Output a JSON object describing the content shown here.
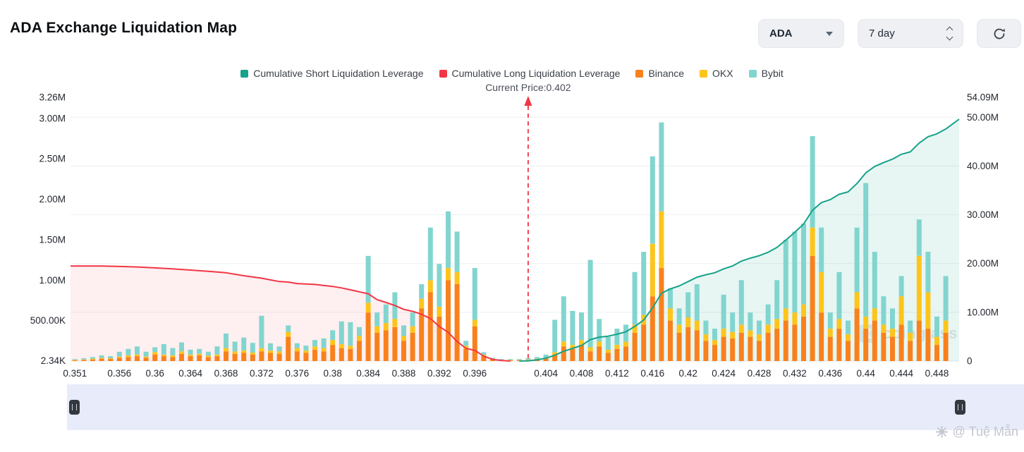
{
  "header": {
    "title": "ADA Exchange Liquidation Map",
    "coin_select": "ADA",
    "range_select": "7 day"
  },
  "legend": {
    "items": [
      {
        "label": "Cumulative Short Liquidation Leverage",
        "color": "#17a28a"
      },
      {
        "label": "Cumulative Long Liquidation Leverage",
        "color": "#f23645"
      },
      {
        "label": "Binance",
        "color": "#f8811d"
      },
      {
        "label": "OKX",
        "color": "#fdc51c"
      },
      {
        "label": "Bybit",
        "color": "#82d5cf"
      }
    ]
  },
  "current_price": {
    "label": "Current Price:0.402",
    "value": 0.402
  },
  "watermark": "coinglass",
  "credit": "@ Tuệ Mẫn",
  "chart_data": {
    "type": "bar",
    "subtype": "stacked-bars-with-cumulative-area-lines",
    "title": "ADA Exchange Liquidation Map",
    "grid": true,
    "legend_position": "top-center",
    "x_axis": {
      "min": 0.3505,
      "max": 0.4505,
      "ticks": [
        {
          "label": "0.351",
          "value": 0.351
        },
        {
          "label": "0.356",
          "value": 0.356
        },
        {
          "label": "0.36",
          "value": 0.36
        },
        {
          "label": "0.364",
          "value": 0.364
        },
        {
          "label": "0.368",
          "value": 0.368
        },
        {
          "label": "0.372",
          "value": 0.372
        },
        {
          "label": "0.376",
          "value": 0.376
        },
        {
          "label": "0.38",
          "value": 0.38
        },
        {
          "label": "0.384",
          "value": 0.384
        },
        {
          "label": "0.388",
          "value": 0.388
        },
        {
          "label": "0.392",
          "value": 0.392
        },
        {
          "label": "0.396",
          "value": 0.396
        },
        {
          "label": "0.404",
          "value": 0.404
        },
        {
          "label": "0.408",
          "value": 0.408
        },
        {
          "label": "0.412",
          "value": 0.412
        },
        {
          "label": "0.416",
          "value": 0.416
        },
        {
          "label": "0.42",
          "value": 0.42
        },
        {
          "label": "0.424",
          "value": 0.424
        },
        {
          "label": "0.428",
          "value": 0.428
        },
        {
          "label": "0.432",
          "value": 0.432
        },
        {
          "label": "0.436",
          "value": 0.436
        },
        {
          "label": "0.44",
          "value": 0.44
        },
        {
          "label": "0.444",
          "value": 0.444
        },
        {
          "label": "0.448",
          "value": 0.448
        }
      ]
    },
    "left_axis": {
      "max": 3.26,
      "unit": "M",
      "ticks": [
        {
          "label": "3.26M",
          "value": 3.26
        },
        {
          "label": "3.00M",
          "value": 3.0
        },
        {
          "label": "2.50M",
          "value": 2.5
        },
        {
          "label": "2.00M",
          "value": 2.0
        },
        {
          "label": "1.50M",
          "value": 1.5
        },
        {
          "label": "1.00M",
          "value": 1.0
        },
        {
          "label": "500.00K",
          "value": 0.5
        },
        {
          "label": "2.34K",
          "value": 0.00234
        }
      ]
    },
    "right_axis": {
      "max": 54.09,
      "unit": "M",
      "ticks": [
        {
          "label": "54.09M",
          "value": 54.09
        },
        {
          "label": "50.00M",
          "value": 50
        },
        {
          "label": "40.00M",
          "value": 40
        },
        {
          "label": "30.00M",
          "value": 30
        },
        {
          "label": "20.00M",
          "value": 20
        },
        {
          "label": "10.00M",
          "value": 10
        },
        {
          "label": "0",
          "value": 0
        }
      ]
    },
    "bars": {
      "stack": [
        "Binance",
        "OKX",
        "Bybit"
      ],
      "colors": [
        "#f8811d",
        "#fdc51c",
        "#82d5cf"
      ],
      "unit": "K",
      "rows": [
        [
          0.351,
          10,
          5,
          10
        ],
        [
          0.352,
          15,
          5,
          15
        ],
        [
          0.353,
          20,
          10,
          20
        ],
        [
          0.354,
          30,
          10,
          30
        ],
        [
          0.355,
          25,
          10,
          25
        ],
        [
          0.356,
          40,
          15,
          60
        ],
        [
          0.357,
          50,
          20,
          80
        ],
        [
          0.358,
          60,
          20,
          100
        ],
        [
          0.359,
          40,
          15,
          60
        ],
        [
          0.36,
          80,
          30,
          60
        ],
        [
          0.361,
          60,
          20,
          130
        ],
        [
          0.362,
          50,
          20,
          90
        ],
        [
          0.363,
          90,
          30,
          110
        ],
        [
          0.364,
          60,
          20,
          60
        ],
        [
          0.365,
          70,
          20,
          60
        ],
        [
          0.366,
          50,
          15,
          50
        ],
        [
          0.367,
          60,
          20,
          100
        ],
        [
          0.368,
          120,
          40,
          180
        ],
        [
          0.369,
          90,
          30,
          120
        ],
        [
          0.37,
          100,
          30,
          160
        ],
        [
          0.371,
          80,
          25,
          120
        ],
        [
          0.372,
          120,
          40,
          400
        ],
        [
          0.373,
          100,
          30,
          90
        ],
        [
          0.374,
          90,
          30,
          60
        ],
        [
          0.375,
          300,
          60,
          80
        ],
        [
          0.376,
          120,
          40,
          60
        ],
        [
          0.377,
          100,
          30,
          60
        ],
        [
          0.378,
          140,
          40,
          80
        ],
        [
          0.379,
          120,
          40,
          120
        ],
        [
          0.38,
          200,
          60,
          120
        ],
        [
          0.381,
          160,
          50,
          280
        ],
        [
          0.382,
          150,
          40,
          290
        ],
        [
          0.383,
          250,
          60,
          110
        ],
        [
          0.384,
          600,
          120,
          580
        ],
        [
          0.385,
          350,
          80,
          170
        ],
        [
          0.386,
          380,
          90,
          230
        ],
        [
          0.387,
          420,
          100,
          330
        ],
        [
          0.388,
          250,
          60,
          130
        ],
        [
          0.389,
          350,
          80,
          170
        ],
        [
          0.39,
          650,
          120,
          180
        ],
        [
          0.391,
          850,
          150,
          650
        ],
        [
          0.392,
          550,
          120,
          530
        ],
        [
          0.393,
          1000,
          150,
          700
        ],
        [
          0.394,
          950,
          150,
          500
        ],
        [
          0.395,
          150,
          40,
          60
        ],
        [
          0.396,
          430,
          80,
          640
        ],
        [
          0.397,
          60,
          20,
          30
        ],
        [
          0.398,
          20,
          10,
          10
        ],
        [
          0.399,
          10,
          5,
          10
        ],
        [
          0.4,
          10,
          5,
          10
        ],
        [
          0.401,
          10,
          5,
          10
        ],
        [
          0.402,
          15,
          5,
          15
        ],
        [
          0.403,
          20,
          10,
          20
        ],
        [
          0.404,
          30,
          10,
          40
        ],
        [
          0.405,
          80,
          30,
          400
        ],
        [
          0.406,
          180,
          60,
          560
        ],
        [
          0.407,
          150,
          50,
          420
        ],
        [
          0.408,
          200,
          60,
          340
        ],
        [
          0.409,
          120,
          50,
          1080
        ],
        [
          0.41,
          180,
          60,
          280
        ],
        [
          0.411,
          100,
          40,
          160
        ],
        [
          0.412,
          150,
          50,
          200
        ],
        [
          0.413,
          180,
          60,
          210
        ],
        [
          0.414,
          350,
          100,
          650
        ],
        [
          0.415,
          450,
          120,
          780
        ],
        [
          0.416,
          800,
          650,
          1080
        ],
        [
          0.417,
          1150,
          700,
          1100
        ],
        [
          0.418,
          500,
          150,
          250
        ],
        [
          0.419,
          350,
          100,
          200
        ],
        [
          0.42,
          420,
          120,
          310
        ],
        [
          0.421,
          380,
          120,
          450
        ],
        [
          0.422,
          250,
          80,
          170
        ],
        [
          0.423,
          200,
          60,
          140
        ],
        [
          0.424,
          300,
          100,
          420
        ],
        [
          0.425,
          280,
          80,
          240
        ],
        [
          0.426,
          350,
          100,
          550
        ],
        [
          0.427,
          300,
          80,
          220
        ],
        [
          0.428,
          250,
          80,
          170
        ],
        [
          0.429,
          350,
          100,
          250
        ],
        [
          0.43,
          400,
          120,
          480
        ],
        [
          0.431,
          500,
          150,
          850
        ],
        [
          0.432,
          450,
          150,
          1000
        ],
        [
          0.433,
          550,
          150,
          1000
        ],
        [
          0.434,
          1300,
          350,
          1130
        ],
        [
          0.435,
          600,
          500,
          550
        ],
        [
          0.436,
          300,
          100,
          200
        ],
        [
          0.437,
          400,
          120,
          580
        ],
        [
          0.438,
          250,
          80,
          170
        ],
        [
          0.439,
          650,
          200,
          800
        ],
        [
          0.44,
          400,
          150,
          1650
        ],
        [
          0.441,
          500,
          150,
          700
        ],
        [
          0.442,
          350,
          100,
          350
        ],
        [
          0.443,
          300,
          100,
          250
        ],
        [
          0.444,
          450,
          350,
          250
        ],
        [
          0.445,
          250,
          100,
          150
        ],
        [
          0.446,
          500,
          800,
          450
        ],
        [
          0.447,
          400,
          450,
          500
        ],
        [
          0.448,
          200,
          100,
          250
        ],
        [
          0.449,
          350,
          150,
          550
        ]
      ]
    },
    "lines": [
      {
        "name": "Cumulative Long Liquidation Leverage",
        "color": "#f23645",
        "fill": "rgba(242,54,69,0.08)",
        "unit": "M",
        "points": [
          [
            0.3505,
            19.5
          ],
          [
            0.352,
            19.5
          ],
          [
            0.354,
            19.5
          ],
          [
            0.356,
            19.4
          ],
          [
            0.358,
            19.3
          ],
          [
            0.36,
            19.1
          ],
          [
            0.362,
            18.9
          ],
          [
            0.364,
            18.65
          ],
          [
            0.366,
            18.4
          ],
          [
            0.368,
            18.1
          ],
          [
            0.37,
            17.5
          ],
          [
            0.372,
            17.0
          ],
          [
            0.374,
            16.3
          ],
          [
            0.375,
            16.2
          ],
          [
            0.376,
            15.9
          ],
          [
            0.378,
            15.7
          ],
          [
            0.38,
            15.3
          ],
          [
            0.381,
            15.0
          ],
          [
            0.382,
            14.6
          ],
          [
            0.383,
            14.2
          ],
          [
            0.384,
            13.8
          ],
          [
            0.385,
            12.6
          ],
          [
            0.386,
            12.0
          ],
          [
            0.387,
            11.4
          ],
          [
            0.388,
            10.6
          ],
          [
            0.389,
            10.2
          ],
          [
            0.39,
            9.6
          ],
          [
            0.391,
            8.7
          ],
          [
            0.392,
            7.1
          ],
          [
            0.393,
            5.9
          ],
          [
            0.394,
            4.0
          ],
          [
            0.395,
            2.6
          ],
          [
            0.396,
            2.2
          ],
          [
            0.397,
            1.0
          ],
          [
            0.398,
            0.35
          ],
          [
            0.399,
            0.1
          ],
          [
            0.4,
            0.0
          ]
        ]
      },
      {
        "name": "Cumulative Short Liquidation Leverage",
        "color": "#17a28a",
        "fill": "rgba(23,162,138,0.10)",
        "unit": "M",
        "points": [
          [
            0.401,
            0.0
          ],
          [
            0.402,
            0.05
          ],
          [
            0.403,
            0.25
          ],
          [
            0.404,
            0.6
          ],
          [
            0.405,
            1.2
          ],
          [
            0.406,
            2.0
          ],
          [
            0.407,
            2.6
          ],
          [
            0.408,
            3.2
          ],
          [
            0.409,
            4.4
          ],
          [
            0.41,
            4.9
          ],
          [
            0.411,
            5.1
          ],
          [
            0.412,
            5.5
          ],
          [
            0.413,
            6.0
          ],
          [
            0.414,
            7.1
          ],
          [
            0.415,
            8.4
          ],
          [
            0.416,
            10.9
          ],
          [
            0.417,
            13.9
          ],
          [
            0.418,
            14.8
          ],
          [
            0.419,
            15.4
          ],
          [
            0.42,
            16.3
          ],
          [
            0.421,
            17.2
          ],
          [
            0.422,
            17.7
          ],
          [
            0.423,
            18.1
          ],
          [
            0.424,
            18.9
          ],
          [
            0.425,
            19.5
          ],
          [
            0.426,
            20.5
          ],
          [
            0.427,
            21.1
          ],
          [
            0.428,
            21.6
          ],
          [
            0.429,
            22.3
          ],
          [
            0.43,
            23.3
          ],
          [
            0.431,
            24.8
          ],
          [
            0.432,
            26.4
          ],
          [
            0.433,
            28.1
          ],
          [
            0.434,
            30.9
          ],
          [
            0.435,
            32.5
          ],
          [
            0.436,
            33.1
          ],
          [
            0.437,
            34.2
          ],
          [
            0.438,
            34.7
          ],
          [
            0.439,
            36.4
          ],
          [
            0.44,
            38.6
          ],
          [
            0.441,
            39.9
          ],
          [
            0.442,
            40.7
          ],
          [
            0.443,
            41.4
          ],
          [
            0.444,
            42.4
          ],
          [
            0.445,
            42.9
          ],
          [
            0.446,
            44.7
          ],
          [
            0.447,
            46.0
          ],
          [
            0.448,
            46.6
          ],
          [
            0.449,
            47.6
          ],
          [
            0.4505,
            49.6
          ]
        ]
      }
    ]
  }
}
